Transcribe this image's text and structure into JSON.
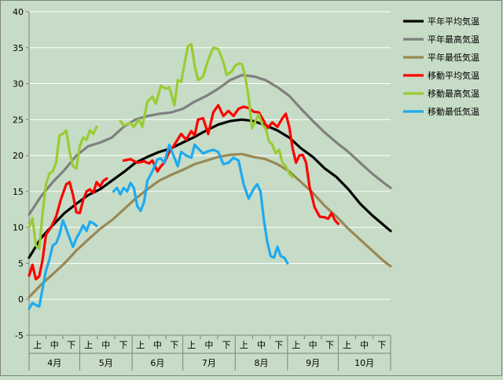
{
  "chart_data": {
    "type": "line",
    "title": "",
    "xlabel": "",
    "ylabel": "",
    "ylim": [
      -5,
      40
    ],
    "yticks": [
      -5,
      0,
      5,
      10,
      15,
      20,
      25,
      30,
      35,
      40
    ],
    "grid": true,
    "legend_position": "top-right",
    "x_units": "day index from 1 April (0-based)",
    "xlim": [
      0,
      214
    ],
    "months": [
      {
        "label": "4月",
        "start": 0,
        "end": 30
      },
      {
        "label": "5月",
        "start": 30,
        "end": 61
      },
      {
        "label": "6月",
        "start": 61,
        "end": 91
      },
      {
        "label": "7月",
        "start": 91,
        "end": 122
      },
      {
        "label": "8月",
        "start": 122,
        "end": 153
      },
      {
        "label": "9月",
        "start": 153,
        "end": 183
      },
      {
        "label": "10月",
        "start": 183,
        "end": 214
      }
    ],
    "thirds": [
      "上",
      "中",
      "下"
    ],
    "series": [
      {
        "name": "平年平均気温",
        "color": "#000000",
        "points": [
          [
            0,
            5.8
          ],
          [
            7,
            8.5
          ],
          [
            14,
            10.3
          ],
          [
            21,
            12
          ],
          [
            28,
            13.3
          ],
          [
            35,
            14.5
          ],
          [
            42,
            15.3
          ],
          [
            49,
            16.5
          ],
          [
            56,
            17.7
          ],
          [
            63,
            19
          ],
          [
            70,
            19.8
          ],
          [
            77,
            20.5
          ],
          [
            84,
            21
          ],
          [
            91,
            21.8
          ],
          [
            98,
            22.6
          ],
          [
            105,
            23.5
          ],
          [
            112,
            24.3
          ],
          [
            119,
            24.8
          ],
          [
            126,
            25
          ],
          [
            133,
            24.8
          ],
          [
            140,
            24.2
          ],
          [
            147,
            23.5
          ],
          [
            154,
            22.5
          ],
          [
            161,
            21
          ],
          [
            168,
            19.8
          ],
          [
            175,
            18.2
          ],
          [
            182,
            17
          ],
          [
            189,
            15.3
          ],
          [
            196,
            13.3
          ],
          [
            203,
            11.7
          ],
          [
            210,
            10.3
          ],
          [
            214,
            9.5
          ]
        ]
      },
      {
        "name": "平年最高気温",
        "color": "#808080",
        "points": [
          [
            0,
            11.8
          ],
          [
            7,
            14.3
          ],
          [
            14,
            16.3
          ],
          [
            21,
            18
          ],
          [
            28,
            20
          ],
          [
            35,
            21.3
          ],
          [
            42,
            21.8
          ],
          [
            49,
            22.5
          ],
          [
            56,
            24
          ],
          [
            63,
            25
          ],
          [
            70,
            25.5
          ],
          [
            77,
            25.8
          ],
          [
            84,
            26
          ],
          [
            91,
            26.5
          ],
          [
            98,
            27.5
          ],
          [
            105,
            28.3
          ],
          [
            112,
            29.3
          ],
          [
            119,
            30.5
          ],
          [
            126,
            31.2
          ],
          [
            133,
            31
          ],
          [
            140,
            30.5
          ],
          [
            147,
            29.5
          ],
          [
            154,
            28.3
          ],
          [
            161,
            26.5
          ],
          [
            168,
            24.8
          ],
          [
            175,
            23.2
          ],
          [
            182,
            21.8
          ],
          [
            189,
            20.5
          ],
          [
            196,
            19
          ],
          [
            203,
            17.5
          ],
          [
            210,
            16.2
          ],
          [
            214,
            15.5
          ]
        ]
      },
      {
        "name": "平年最低気温",
        "color": "#998855",
        "points": [
          [
            0,
            0.3
          ],
          [
            7,
            2
          ],
          [
            14,
            3.5
          ],
          [
            21,
            5
          ],
          [
            28,
            6.8
          ],
          [
            35,
            8.3
          ],
          [
            42,
            9.8
          ],
          [
            49,
            11
          ],
          [
            56,
            12.5
          ],
          [
            63,
            14
          ],
          [
            70,
            15.3
          ],
          [
            77,
            16.5
          ],
          [
            84,
            17.3
          ],
          [
            91,
            18
          ],
          [
            98,
            18.8
          ],
          [
            105,
            19.3
          ],
          [
            112,
            19.8
          ],
          [
            119,
            20.1
          ],
          [
            126,
            20.2
          ],
          [
            133,
            19.8
          ],
          [
            140,
            19.5
          ],
          [
            147,
            18.8
          ],
          [
            154,
            17.8
          ],
          [
            161,
            16.3
          ],
          [
            168,
            14.8
          ],
          [
            175,
            13
          ],
          [
            182,
            11.5
          ],
          [
            189,
            9.8
          ],
          [
            196,
            8.3
          ],
          [
            203,
            6.8
          ],
          [
            210,
            5.3
          ],
          [
            214,
            4.6
          ]
        ]
      },
      {
        "name": "移動平均気温",
        "color": "#ff0000",
        "points": [
          [
            0,
            3.3
          ],
          [
            2,
            4.8
          ],
          [
            4,
            2.8
          ],
          [
            6,
            3.2
          ],
          [
            8,
            5.5
          ],
          [
            10,
            9
          ],
          [
            13,
            10
          ],
          [
            16,
            11.5
          ],
          [
            19,
            14
          ],
          [
            22,
            16
          ],
          [
            24,
            16.3
          ],
          [
            26,
            14.5
          ],
          [
            28,
            12.1
          ],
          [
            30,
            12
          ],
          [
            32,
            13.8
          ],
          [
            34,
            15
          ],
          [
            36,
            15.3
          ],
          [
            38,
            14.8
          ],
          [
            40,
            16.3
          ],
          [
            42,
            15.7
          ],
          [
            44,
            16.5
          ],
          [
            46,
            16.8
          ],
          [
            null,
            null
          ],
          [
            56,
            19.3
          ],
          [
            60,
            19.5
          ],
          [
            64,
            19
          ],
          [
            68,
            19.2
          ],
          [
            71,
            18.9
          ],
          [
            73,
            19.3
          ],
          [
            76,
            17.8
          ],
          [
            78,
            18.5
          ],
          [
            80,
            19
          ],
          [
            83,
            20.5
          ],
          [
            86,
            21.5
          ],
          [
            90,
            23
          ],
          [
            93,
            22.2
          ],
          [
            96,
            23.4
          ],
          [
            98,
            22.8
          ],
          [
            100,
            25
          ],
          [
            103,
            25.2
          ],
          [
            106,
            23
          ],
          [
            109,
            26
          ],
          [
            112,
            27
          ],
          [
            115,
            25.5
          ],
          [
            118,
            26.2
          ],
          [
            121,
            25.5
          ],
          [
            124,
            26.5
          ],
          [
            127,
            26.8
          ],
          [
            130,
            26.6
          ],
          [
            133,
            26.1
          ],
          [
            136,
            26
          ],
          [
            139,
            24.8
          ],
          [
            141,
            23.8
          ],
          [
            144,
            24.6
          ],
          [
            147,
            24
          ],
          [
            150,
            25.2
          ],
          [
            152,
            25.8
          ],
          [
            154,
            24
          ],
          [
            156,
            21
          ],
          [
            158,
            19
          ],
          [
            160,
            20
          ],
          [
            162,
            20.1
          ],
          [
            164,
            19
          ],
          [
            166,
            15.7
          ],
          [
            169,
            12.8
          ],
          [
            172,
            11.5
          ],
          [
            175,
            11.4
          ],
          [
            177,
            11.2
          ],
          [
            179,
            12
          ],
          [
            181,
            11
          ],
          [
            183,
            10.5
          ]
        ]
      },
      {
        "name": "移動最高気温",
        "color": "#99cc33",
        "points": [
          [
            0,
            10
          ],
          [
            2,
            11.3
          ],
          [
            4,
            7.5
          ],
          [
            6,
            7
          ],
          [
            8,
            12
          ],
          [
            10,
            16
          ],
          [
            12,
            17.5
          ],
          [
            14,
            17.8
          ],
          [
            16,
            19
          ],
          [
            18,
            22.8
          ],
          [
            20,
            23
          ],
          [
            22,
            23.5
          ],
          [
            24,
            20.5
          ],
          [
            26,
            18.5
          ],
          [
            28,
            18.2
          ],
          [
            30,
            21.3
          ],
          [
            32,
            22.5
          ],
          [
            34,
            22.2
          ],
          [
            36,
            23.5
          ],
          [
            38,
            23
          ],
          [
            40,
            24
          ],
          [
            null,
            null
          ],
          [
            54,
            24.8
          ],
          [
            56,
            24.2
          ],
          [
            60,
            24.5
          ],
          [
            62,
            24
          ],
          [
            65,
            25
          ],
          [
            67,
            24
          ],
          [
            70,
            27.5
          ],
          [
            73,
            28.2
          ],
          [
            75,
            27.2
          ],
          [
            78,
            29.7
          ],
          [
            81,
            29.3
          ],
          [
            83,
            29.5
          ],
          [
            86,
            27
          ],
          [
            88,
            30.5
          ],
          [
            90,
            30.2
          ],
          [
            92,
            32.8
          ],
          [
            94,
            35.2
          ],
          [
            96,
            35.5
          ],
          [
            98,
            32.5
          ],
          [
            100,
            30.5
          ],
          [
            103,
            31
          ],
          [
            106,
            33.3
          ],
          [
            109,
            35
          ],
          [
            112,
            34.8
          ],
          [
            115,
            33
          ],
          [
            117,
            31.2
          ],
          [
            120,
            31.7
          ],
          [
            122,
            32.5
          ],
          [
            124,
            32.8
          ],
          [
            126,
            32.7
          ],
          [
            128,
            31
          ],
          [
            130,
            28
          ],
          [
            132,
            23.8
          ],
          [
            134,
            24.8
          ],
          [
            136,
            25.7
          ],
          [
            138,
            24.3
          ],
          [
            140,
            23.8
          ],
          [
            142,
            22
          ],
          [
            144,
            21.5
          ],
          [
            146,
            20.3
          ],
          [
            148,
            20.8
          ],
          [
            150,
            19
          ],
          [
            152,
            18.5
          ],
          [
            154,
            17.5
          ],
          [
            156,
            17
          ]
        ]
      },
      {
        "name": "移動最低気温",
        "color": "#1eaaf0",
        "points": [
          [
            0,
            -1.3
          ],
          [
            2,
            -0.5
          ],
          [
            4,
            -0.8
          ],
          [
            6,
            -1
          ],
          [
            8,
            1.5
          ],
          [
            10,
            4
          ],
          [
            12,
            5.5
          ],
          [
            14,
            7.5
          ],
          [
            16,
            7.8
          ],
          [
            18,
            9
          ],
          [
            20,
            11
          ],
          [
            22,
            9.8
          ],
          [
            24,
            8.5
          ],
          [
            26,
            7.3
          ],
          [
            28,
            8.5
          ],
          [
            30,
            9.3
          ],
          [
            32,
            10.3
          ],
          [
            34,
            9.5
          ],
          [
            36,
            10.8
          ],
          [
            38,
            10.6
          ],
          [
            40,
            10.2
          ],
          [
            null,
            null
          ],
          [
            50,
            15
          ],
          [
            52,
            15.5
          ],
          [
            54,
            14.6
          ],
          [
            56,
            15.5
          ],
          [
            58,
            15
          ],
          [
            60,
            16.2
          ],
          [
            62,
            15.5
          ],
          [
            64,
            13
          ],
          [
            66,
            12.3
          ],
          [
            68,
            13.5
          ],
          [
            70,
            16.5
          ],
          [
            73,
            17.8
          ],
          [
            76,
            19.5
          ],
          [
            78,
            19.6
          ],
          [
            80,
            19
          ],
          [
            83,
            21.5
          ],
          [
            86,
            19.7
          ],
          [
            88,
            18.5
          ],
          [
            90,
            20.5
          ],
          [
            93,
            20
          ],
          [
            96,
            19.7
          ],
          [
            98,
            21.5
          ],
          [
            100,
            21
          ],
          [
            103,
            20.3
          ],
          [
            106,
            20.6
          ],
          [
            109,
            20.8
          ],
          [
            112,
            20.5
          ],
          [
            115,
            18.8
          ],
          [
            118,
            19
          ],
          [
            121,
            19.7
          ],
          [
            124,
            19.3
          ],
          [
            127,
            16
          ],
          [
            130,
            14
          ],
          [
            133,
            15.4
          ],
          [
            135,
            16
          ],
          [
            137,
            15
          ],
          [
            139,
            11
          ],
          [
            141,
            8
          ],
          [
            143,
            6
          ],
          [
            145,
            5.8
          ],
          [
            147,
            7.3
          ],
          [
            149,
            6
          ],
          [
            151,
            5.8
          ],
          [
            153,
            5
          ]
        ]
      }
    ]
  }
}
